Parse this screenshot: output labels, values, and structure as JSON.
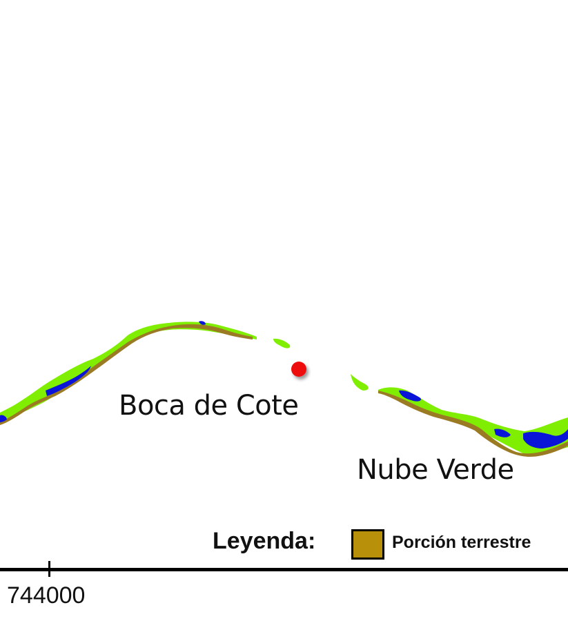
{
  "map": {
    "places": {
      "boca_de_cote": "Boca de Cote",
      "nube_verde": "Nube Verde"
    },
    "legend": {
      "title": "Leyenda:",
      "items": [
        {
          "label": "Porción terrestre",
          "color": "#b8900a"
        }
      ]
    },
    "axis": {
      "tick_label": "744000"
    },
    "colors": {
      "land": "#9b7a24",
      "vegetation": "#80ee00",
      "water": "#0a14d8",
      "point_marker": "#ee1111"
    }
  }
}
